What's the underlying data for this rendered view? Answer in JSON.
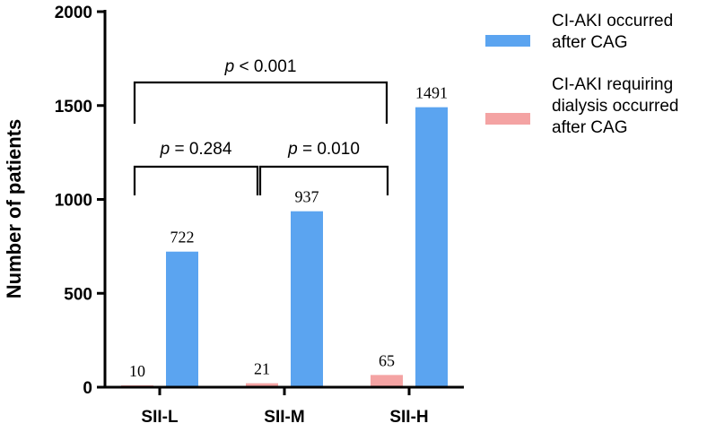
{
  "chart_data": {
    "type": "bar",
    "title": "",
    "xlabel": "",
    "ylabel": "Number of patients",
    "ylim": [
      0,
      2000
    ],
    "yticks": [
      0,
      500,
      1000,
      1500,
      2000
    ],
    "categories": [
      "SII-L",
      "SII-M",
      "SII-H"
    ],
    "series": [
      {
        "name": "CI-AKI requiring dialysis occurred after CAG",
        "legend_lines": [
          "CI-AKI requiring",
          "dialysis occurred",
          "after CAG"
        ],
        "color": "#F4A3A3",
        "values": [
          10,
          21,
          65
        ]
      },
      {
        "name": "CI-AKI  occurred after CAG",
        "legend_lines": [
          "CI-AKI  occurred",
          "after CAG"
        ],
        "color": "#5BA4F0",
        "values": [
          722,
          937,
          1491
        ]
      }
    ],
    "legend_order": [
      1,
      0
    ],
    "legend_position": "right",
    "annotations": [
      {
        "from": 0,
        "to": 2,
        "italic": "p",
        "text": " < 0.001"
      },
      {
        "from": 0,
        "to": 1,
        "italic": "p",
        "text": " = 0.284"
      },
      {
        "from": 1,
        "to": 2,
        "italic": "p",
        "text": " = 0.010"
      }
    ]
  }
}
